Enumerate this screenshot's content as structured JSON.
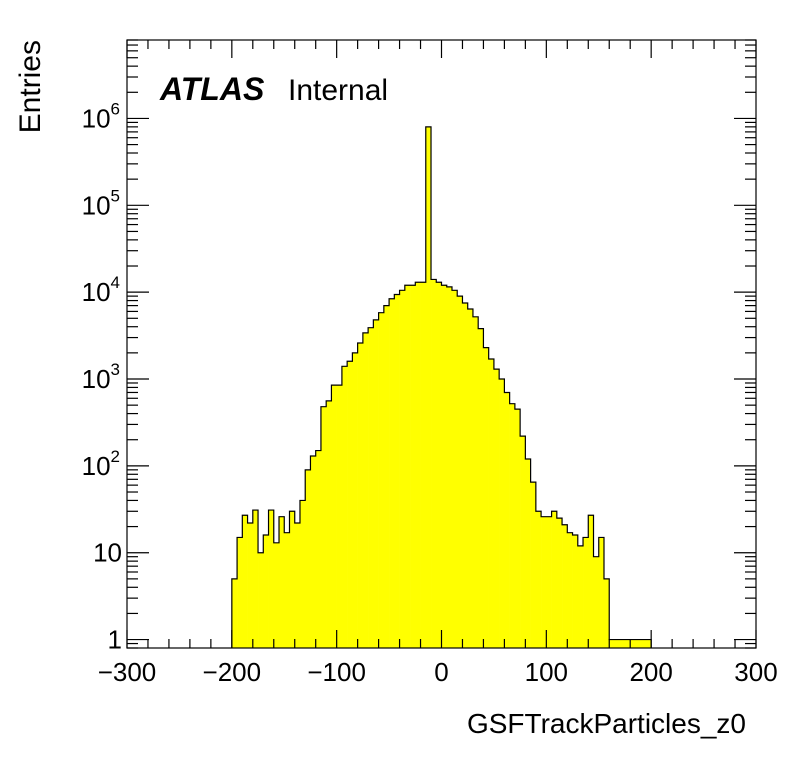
{
  "chart_data": {
    "type": "bar",
    "subtype": "histogram",
    "title": "",
    "xlabel": "GSFTrackParticles_z0",
    "ylabel": "Entries",
    "xlim": [
      -300,
      300
    ],
    "ylim": [
      0.8,
      8000000
    ],
    "yscale": "log",
    "grid": false,
    "legend": "none",
    "annotation": {
      "experiment": "ATLAS",
      "status": "Internal"
    },
    "x_ticks": [
      -300,
      -200,
      -100,
      0,
      100,
      200,
      300
    ],
    "x_tick_labels": [
      "−300",
      "−200",
      "−100",
      "0",
      "100",
      "200",
      "300"
    ],
    "y_ticks": [
      {
        "value": 1,
        "base": "1",
        "exp": ""
      },
      {
        "value": 10,
        "base": "10",
        "exp": ""
      },
      {
        "value": 100,
        "base": "10",
        "exp": "2"
      },
      {
        "value": 1000,
        "base": "10",
        "exp": "3"
      },
      {
        "value": 10000,
        "base": "10",
        "exp": "4"
      },
      {
        "value": 100000,
        "base": "10",
        "exp": "5"
      },
      {
        "value": 1000000,
        "base": "10",
        "exp": "6"
      }
    ],
    "series": [
      {
        "fill_color": "#ffff00",
        "line_color": "#000000",
        "bin_edges": [
          -200,
          -195,
          -190,
          -185,
          -180,
          -175,
          -170,
          -165,
          -160,
          -155,
          -150,
          -145,
          -140,
          -135,
          -130,
          -125,
          -120,
          -115,
          -110,
          -105,
          -100,
          -95,
          -90,
          -85,
          -80,
          -75,
          -70,
          -65,
          -60,
          -55,
          -50,
          -45,
          -40,
          -35,
          -30,
          -25,
          -20,
          -15,
          -10,
          -5,
          0,
          5,
          10,
          15,
          20,
          25,
          30,
          35,
          40,
          45,
          50,
          55,
          60,
          65,
          70,
          75,
          80,
          85,
          90,
          95,
          100,
          105,
          110,
          115,
          120,
          125,
          130,
          135,
          140,
          145,
          150,
          155,
          160,
          165,
          170,
          175,
          180,
          185,
          190,
          195,
          200
        ],
        "values": [
          5,
          15,
          27,
          22,
          31,
          10,
          16,
          31,
          13,
          26,
          17,
          30,
          22,
          40,
          90,
          130,
          150,
          480,
          560,
          850,
          850,
          1400,
          1600,
          2000,
          2600,
          3400,
          3900,
          4800,
          5800,
          7000,
          8400,
          9400,
          10500,
          12000,
          12000,
          13000,
          13000,
          800000,
          14000,
          13000,
          12000,
          11500,
          10500,
          9000,
          7500,
          6400,
          5200,
          3800,
          2300,
          1700,
          1300,
          1000,
          700,
          520,
          450,
          220,
          120,
          65,
          30,
          26,
          26,
          30,
          25,
          21,
          17,
          16,
          12,
          15,
          27,
          9,
          15,
          5,
          1,
          1,
          1,
          1,
          1,
          1,
          1,
          1
        ]
      }
    ]
  }
}
